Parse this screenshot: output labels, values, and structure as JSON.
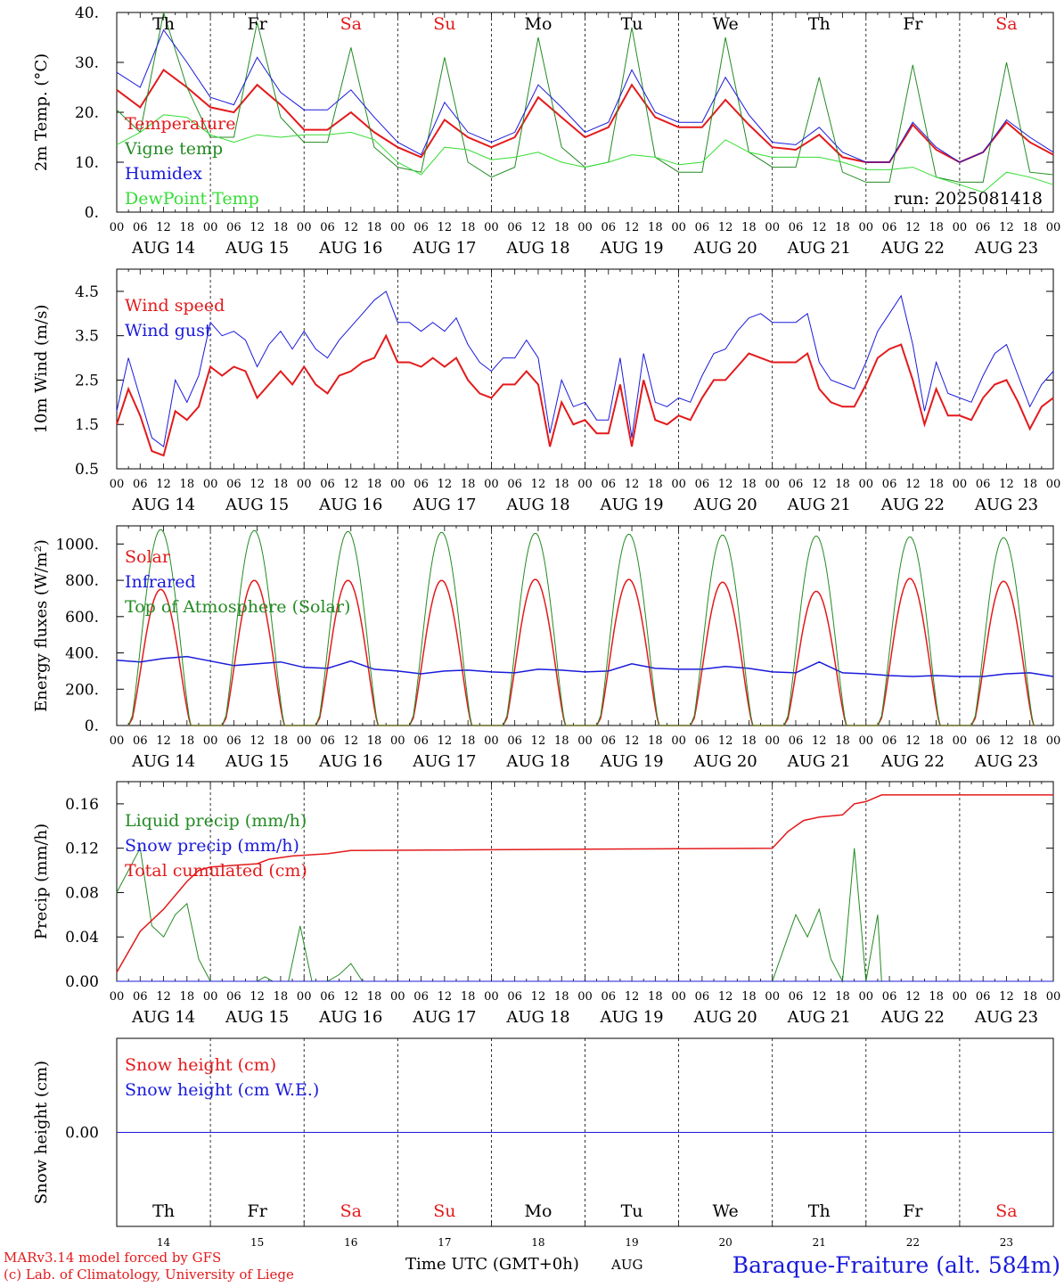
{
  "chart_data": [
    {
      "type": "line",
      "ylabel": "2m Temp. (°C)",
      "ylim": [
        0,
        40
      ],
      "yticks": [
        "0.",
        "10.",
        "20.",
        "30.",
        "40."
      ],
      "day_letters": [
        {
          "label": "Th",
          "color": "#000000"
        },
        {
          "label": "Fr",
          "color": "#000000"
        },
        {
          "label": "Sa",
          "color": "#e31a1c"
        },
        {
          "label": "Su",
          "color": "#e31a1c"
        },
        {
          "label": "Mo",
          "color": "#000000"
        },
        {
          "label": "Tu",
          "color": "#000000"
        },
        {
          "label": "We",
          "color": "#000000"
        },
        {
          "label": "Th",
          "color": "#000000"
        },
        {
          "label": "Fr",
          "color": "#000000"
        },
        {
          "label": "Sa",
          "color": "#e31a1c"
        }
      ],
      "annotation": "run: 2025081418",
      "x_hours": [
        0,
        6,
        12,
        18,
        24,
        30,
        36,
        42,
        48,
        54,
        60,
        66,
        72,
        78,
        84,
        90,
        96,
        102,
        108,
        114,
        120,
        126,
        132,
        138,
        144,
        150,
        156,
        162,
        168,
        174,
        180,
        186,
        192,
        198,
        204,
        210,
        216,
        222,
        228,
        234,
        240
      ],
      "series": [
        {
          "name": "Temperature",
          "color": "#e31a1c",
          "width": 2,
          "values": [
            24.5,
            21,
            28.5,
            25,
            21,
            20,
            25.5,
            21.5,
            16.5,
            16.5,
            20,
            16,
            13,
            11,
            18.5,
            15,
            13,
            15,
            23,
            19,
            15,
            17,
            25.5,
            19,
            17,
            17,
            22.5,
            17.5,
            13,
            12.5,
            15.5,
            11,
            10,
            10,
            17.5,
            12.5,
            10,
            12,
            18,
            14,
            11.5
          ]
        },
        {
          "name": "Vigne temp",
          "color": "#238b23",
          "width": 1,
          "values": [
            20.5,
            16,
            40,
            25,
            15,
            15,
            38,
            19,
            14,
            14,
            33,
            13,
            9,
            8,
            31,
            10,
            7,
            9,
            35,
            13,
            9,
            10,
            37,
            11,
            8,
            8,
            35,
            12,
            9,
            9,
            27,
            8,
            6,
            6,
            29.5,
            7,
            6,
            6,
            30,
            8,
            7.5
          ]
        },
        {
          "name": "Humidex",
          "color": "#1a1adb",
          "width": 1,
          "values": [
            28,
            25,
            36.5,
            30,
            23,
            21.5,
            31,
            24,
            20.5,
            20.5,
            24.5,
            19,
            14,
            11.5,
            22,
            16,
            14,
            16,
            25.5,
            21,
            16,
            18,
            28.5,
            20,
            18,
            18,
            27,
            19.5,
            14,
            13.5,
            17,
            12,
            10,
            10,
            18,
            13,
            10,
            12,
            18.5,
            15,
            12
          ]
        },
        {
          "name": "DewPoint Temp",
          "color": "#33dd33",
          "width": 1,
          "values": [
            13.5,
            16,
            19.5,
            19,
            15.5,
            14,
            15.5,
            15,
            15.5,
            15.5,
            16,
            14.5,
            10,
            7.5,
            13,
            12.5,
            10.5,
            11,
            12,
            10,
            9,
            10,
            11.5,
            11,
            9.5,
            10,
            14.5,
            12,
            11,
            11,
            11,
            10,
            8.5,
            8.5,
            9,
            7,
            5.5,
            4,
            8,
            7,
            5.5
          ]
        }
      ]
    },
    {
      "type": "line",
      "ylabel": "10m Wind (m/s)",
      "ylim": [
        0.5,
        5
      ],
      "yticks": [
        "0.5",
        "1.5",
        "2.5",
        "3.5",
        "4.5"
      ],
      "x_hours": [
        0,
        3,
        6,
        9,
        12,
        15,
        18,
        21,
        24,
        27,
        30,
        33,
        36,
        39,
        42,
        45,
        48,
        51,
        54,
        57,
        60,
        63,
        66,
        69,
        72,
        75,
        78,
        81,
        84,
        87,
        90,
        93,
        96,
        99,
        102,
        105,
        108,
        111,
        114,
        117,
        120,
        123,
        126,
        129,
        132,
        135,
        138,
        141,
        144,
        147,
        150,
        153,
        156,
        159,
        162,
        165,
        168,
        171,
        174,
        177,
        180,
        183,
        186,
        189,
        192,
        195,
        198,
        201,
        204,
        207,
        210,
        213,
        216,
        219,
        222,
        225,
        228,
        231,
        234,
        237,
        240
      ],
      "series": [
        {
          "name": "Wind speed",
          "color": "#e31a1c",
          "width": 2,
          "values": [
            1.5,
            2.3,
            1.7,
            0.9,
            0.8,
            1.8,
            1.6,
            1.9,
            2.8,
            2.6,
            2.8,
            2.7,
            2.1,
            2.4,
            2.7,
            2.4,
            2.8,
            2.4,
            2.2,
            2.6,
            2.7,
            2.9,
            3.0,
            3.5,
            2.9,
            2.9,
            2.8,
            3.0,
            2.8,
            3.0,
            2.5,
            2.2,
            2.1,
            2.4,
            2.4,
            2.7,
            2.4,
            1.0,
            2.0,
            1.5,
            1.6,
            1.3,
            1.3,
            2.4,
            1.0,
            2.5,
            1.6,
            1.5,
            1.7,
            1.6,
            2.1,
            2.5,
            2.5,
            2.8,
            3.1,
            3.0,
            2.9,
            2.9,
            2.9,
            3.1,
            2.3,
            2.0,
            1.9,
            1.9,
            2.4,
            3.0,
            3.2,
            3.3,
            2.5,
            1.5,
            2.3,
            1.7,
            1.7,
            1.6,
            2.1,
            2.4,
            2.5,
            2.0,
            1.4,
            1.9,
            2.1
          ]
        },
        {
          "name": "Wind gust",
          "color": "#1a1adb",
          "width": 1,
          "values": [
            1.8,
            3.0,
            2.1,
            1.2,
            1.0,
            2.5,
            2.0,
            2.6,
            3.8,
            3.5,
            3.6,
            3.4,
            2.8,
            3.3,
            3.6,
            3.2,
            3.6,
            3.2,
            3.0,
            3.4,
            3.7,
            4.0,
            4.3,
            4.5,
            3.8,
            3.8,
            3.6,
            3.8,
            3.6,
            3.9,
            3.3,
            2.9,
            2.7,
            3.0,
            3.0,
            3.4,
            3.0,
            1.3,
            2.5,
            1.9,
            2.0,
            1.6,
            1.6,
            3.0,
            1.2,
            3.1,
            2.0,
            1.9,
            2.1,
            2.0,
            2.6,
            3.1,
            3.2,
            3.6,
            3.9,
            4.0,
            3.8,
            3.8,
            3.8,
            4.0,
            2.9,
            2.5,
            2.4,
            2.3,
            2.9,
            3.6,
            4.0,
            4.4,
            3.3,
            1.8,
            2.9,
            2.2,
            2.1,
            2.0,
            2.6,
            3.1,
            3.3,
            2.6,
            1.9,
            2.4,
            2.7
          ]
        }
      ]
    },
    {
      "type": "line",
      "ylabel": "Energy fluxes (W/m²)",
      "ylim": [
        0,
        1100
      ],
      "yticks": [
        "0.",
        "200.",
        "400.",
        "600.",
        "800.",
        "1000."
      ],
      "days": 10,
      "series": [
        {
          "name": "Solar",
          "color": "#e31a1c",
          "width": 1.5,
          "peaks": [
            750,
            800,
            800,
            800,
            805,
            805,
            790,
            740,
            810,
            795
          ]
        },
        {
          "name": "Infrared",
          "color": "#1a1adb",
          "width": 1.5,
          "values": [
            360,
            350,
            370,
            380,
            355,
            330,
            340,
            350,
            320,
            315,
            355,
            310,
            300,
            285,
            300,
            305,
            295,
            290,
            310,
            305,
            295,
            300,
            340,
            315,
            310,
            310,
            325,
            315,
            295,
            290,
            350,
            290,
            285,
            275,
            270,
            275,
            270,
            270,
            285,
            290,
            270
          ]
        },
        {
          "name": "Top of Atmosphere (Solar)",
          "color": "#238b23",
          "width": 1,
          "peaks": [
            1080,
            1075,
            1070,
            1065,
            1060,
            1055,
            1050,
            1045,
            1040,
            1035
          ]
        }
      ]
    },
    {
      "type": "line",
      "ylabel": "Precip (mm/h)",
      "ylim": [
        0,
        0.18
      ],
      "yticks": [
        "0.00",
        "0.04",
        "0.08",
        "0.12",
        "0.16"
      ],
      "series": [
        {
          "name": "Liquid precip (mm/h)",
          "color": "#238b23",
          "width": 1,
          "points": [
            [
              0,
              0.08
            ],
            [
              3,
              0.1
            ],
            [
              6,
              0.12
            ],
            [
              9,
              0.05
            ],
            [
              12,
              0.04
            ],
            [
              15,
              0.06
            ],
            [
              18,
              0.07
            ],
            [
              21,
              0.02
            ],
            [
              24,
              0.0
            ],
            [
              36,
              0.0
            ],
            [
              38,
              0.004
            ],
            [
              40,
              0.0
            ],
            [
              44,
              0.0
            ],
            [
              47,
              0.05
            ],
            [
              50,
              0.0
            ],
            [
              54,
              0.0
            ],
            [
              57,
              0.006
            ],
            [
              60,
              0.016
            ],
            [
              63,
              0.0
            ],
            [
              168,
              0.0
            ],
            [
              171,
              0.03
            ],
            [
              174,
              0.06
            ],
            [
              177,
              0.04
            ],
            [
              180,
              0.065
            ],
            [
              183,
              0.02
            ],
            [
              186,
              0.0
            ],
            [
              189,
              0.12
            ],
            [
              192,
              0.0
            ],
            [
              195,
              0.06
            ],
            [
              196,
              0.0
            ]
          ]
        },
        {
          "name": "Snow precip (mm/h)",
          "color": "#1a1adb",
          "width": 1,
          "points": [
            [
              0,
              0.0
            ],
            [
              240,
              0.0
            ]
          ]
        },
        {
          "name": "Total cumulated (cm)",
          "color": "#e31a1c",
          "width": 1.5,
          "points": [
            [
              0,
              0.008
            ],
            [
              6,
              0.045
            ],
            [
              12,
              0.065
            ],
            [
              18,
              0.09
            ],
            [
              21,
              0.1
            ],
            [
              24,
              0.103
            ],
            [
              36,
              0.106
            ],
            [
              39,
              0.11
            ],
            [
              45,
              0.113
            ],
            [
              54,
              0.115
            ],
            [
              60,
              0.118
            ],
            [
              168,
              0.12
            ],
            [
              172,
              0.135
            ],
            [
              176,
              0.145
            ],
            [
              180,
              0.148
            ],
            [
              186,
              0.15
            ],
            [
              189,
              0.16
            ],
            [
              192,
              0.162
            ],
            [
              196,
              0.168
            ],
            [
              240,
              0.168
            ]
          ]
        }
      ]
    },
    {
      "type": "line",
      "ylabel": "Snow height (cm)",
      "ylim": [
        -1,
        1
      ],
      "yticks": [
        "0.00"
      ],
      "series": [
        {
          "name": "Snow height (cm)",
          "color": "#e31a1c",
          "width": 1,
          "points": [
            [
              0,
              0
            ],
            [
              240,
              0
            ]
          ]
        },
        {
          "name": "Snow height (cm W.E.)",
          "color": "#1a1adb",
          "width": 1,
          "points": [
            [
              0,
              0
            ],
            [
              240,
              0
            ]
          ]
        }
      ]
    }
  ],
  "x_axis": {
    "hour_ticks": [
      "00",
      "06",
      "12",
      "18"
    ],
    "date_labels": [
      "AUG 14",
      "AUG 15",
      "AUG 16",
      "AUG 17",
      "AUG 18",
      "AUG 19",
      "AUG 20",
      "AUG 21",
      "AUG 22",
      "AUG 23"
    ],
    "bottom_day_numbers": [
      "14",
      "15",
      "16",
      "17",
      "18",
      "19",
      "20",
      "21",
      "22",
      "23"
    ],
    "bottom_month": "AUG",
    "bottom_label": "Time UTC (GMT+0h)"
  },
  "footer": {
    "credit_line1": "MARv3.14 model forced by GFS",
    "credit_line2": "(c) Lab. of Climatology, University of Liege",
    "station": "Baraque-Fraiture (alt. 584m)"
  }
}
